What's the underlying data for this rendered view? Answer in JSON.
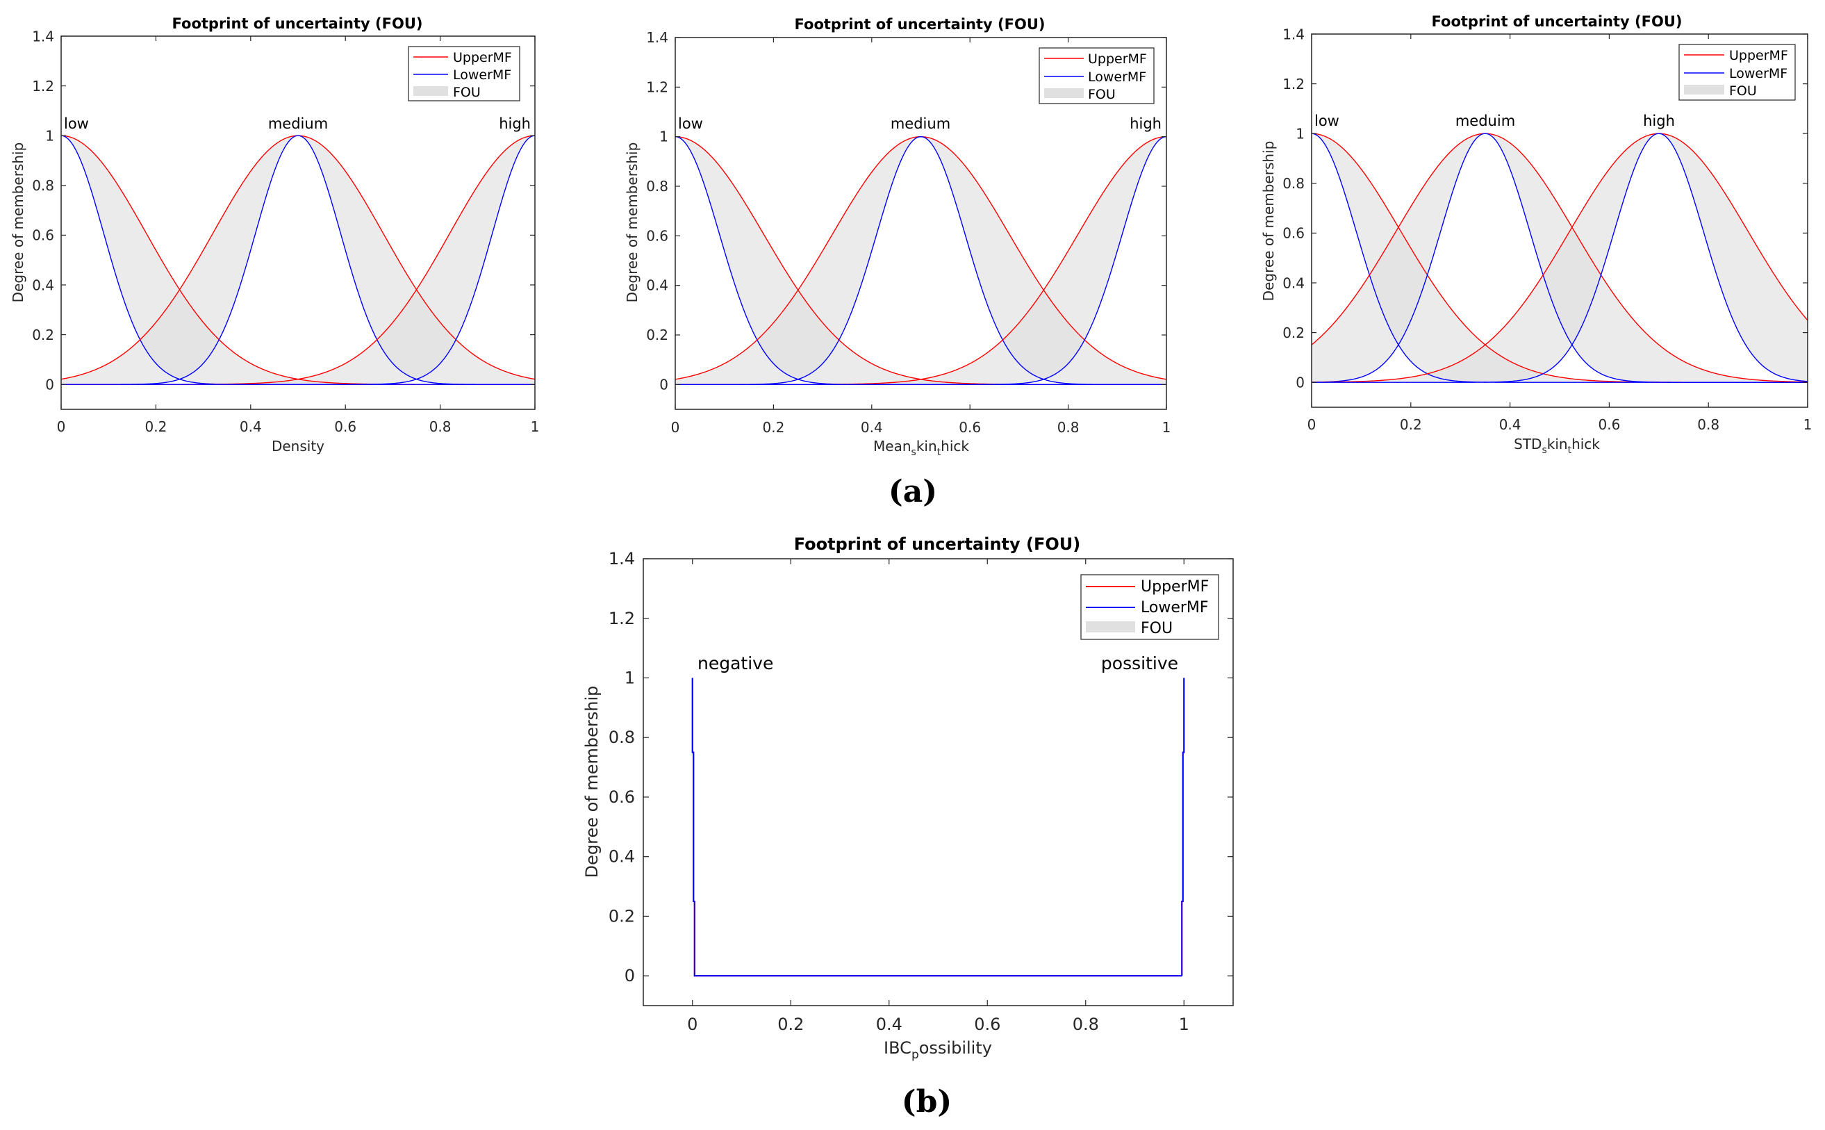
{
  "panel_labels": {
    "a": "(a)",
    "b": "(b)"
  },
  "colors": {
    "upper": "#ff0000",
    "lower": "#0000ff",
    "fou": "#e0e0e0",
    "axis": "#262626"
  },
  "chart_data": [
    {
      "id": "density",
      "type": "line",
      "title": "Footprint of uncertainty (FOU)",
      "xlabel": "Density",
      "ylabel": "Degree of membership",
      "xlim": [
        0,
        1
      ],
      "ylim": [
        -0.1,
        1.4
      ],
      "xticks": [
        "0",
        "0.2",
        "0.4",
        "0.6",
        "0.8",
        "1"
      ],
      "yticks": [
        "0",
        "0.2",
        "0.4",
        "0.6",
        "0.8",
        "1",
        "1.2",
        "1.4"
      ],
      "legend": [
        "UpperMF",
        "LowerMF",
        "FOU"
      ],
      "mfs": [
        {
          "name": "low",
          "center": 0,
          "upper_sigma": 0.18,
          "lower_sigma": 0.09
        },
        {
          "name": "medium",
          "center": 0.5,
          "upper_sigma": 0.18,
          "lower_sigma": 0.09
        },
        {
          "name": "high",
          "center": 1,
          "upper_sigma": 0.18,
          "lower_sigma": 0.09
        }
      ]
    },
    {
      "id": "mean-skin-thick",
      "type": "line",
      "title": "Footprint of uncertainty (FOU)",
      "xlabel_main": "Mean",
      "xlabel_sub1": "s",
      "xlabel_mid": "kin",
      "xlabel_sub2": "t",
      "xlabel_end": "hick",
      "ylabel": "Degree of membership",
      "xlim": [
        0,
        1
      ],
      "ylim": [
        -0.1,
        1.4
      ],
      "xticks": [
        "0",
        "0.2",
        "0.4",
        "0.6",
        "0.8",
        "1"
      ],
      "yticks": [
        "0",
        "0.2",
        "0.4",
        "0.6",
        "0.8",
        "1",
        "1.2",
        "1.4"
      ],
      "legend": [
        "UpperMF",
        "LowerMF",
        "FOU"
      ],
      "mfs": [
        {
          "name": "low",
          "center": 0,
          "upper_sigma": 0.18,
          "lower_sigma": 0.09
        },
        {
          "name": "medium",
          "center": 0.5,
          "upper_sigma": 0.18,
          "lower_sigma": 0.09
        },
        {
          "name": "high",
          "center": 1,
          "upper_sigma": 0.18,
          "lower_sigma": 0.09
        }
      ]
    },
    {
      "id": "std-skin-thick",
      "type": "line",
      "title": "Footprint of uncertainty (FOU)",
      "xlabel_main": "STD",
      "xlabel_sub1": "s",
      "xlabel_mid": "kin",
      "xlabel_sub2": "t",
      "xlabel_end": "hick",
      "ylabel": "Degree of membership",
      "xlim": [
        0,
        1
      ],
      "ylim": [
        -0.1,
        1.4
      ],
      "xticks": [
        "0",
        "0.2",
        "0.4",
        "0.6",
        "0.8",
        "1"
      ],
      "yticks": [
        "0",
        "0.2",
        "0.4",
        "0.6",
        "0.8",
        "1",
        "1.2",
        "1.4"
      ],
      "legend": [
        "UpperMF",
        "LowerMF",
        "FOU"
      ],
      "mfs": [
        {
          "name": "low",
          "center": 0,
          "upper_sigma": 0.18,
          "lower_sigma": 0.09
        },
        {
          "name": "meduim",
          "center": 0.35,
          "upper_sigma": 0.18,
          "lower_sigma": 0.09
        },
        {
          "name": "high",
          "center": 0.7,
          "upper_sigma": 0.18,
          "lower_sigma": 0.09
        }
      ]
    },
    {
      "id": "ibc-possibility",
      "type": "line",
      "title": "Footprint of uncertainty (FOU)",
      "xlabel_main": "IBC",
      "xlabel_sub1": "p",
      "xlabel_end": "ossibility",
      "ylabel": "Degree of membership",
      "xlim": [
        -0.1,
        1.1
      ],
      "ylim": [
        -0.1,
        1.4
      ],
      "xticks": [
        "0",
        "0.2",
        "0.4",
        "0.6",
        "0.8",
        "1"
      ],
      "yticks": [
        "0",
        "0.2",
        "0.4",
        "0.6",
        "0.8",
        "1",
        "1.2",
        "1.4"
      ],
      "legend": [
        "UpperMF",
        "LowerMF",
        "FOU"
      ],
      "mfs": [
        {
          "name": "negative",
          "center": 0,
          "upper_sigma": 0.001,
          "lower_sigma": 0.001
        },
        {
          "name": "possitive",
          "center": 1,
          "upper_sigma": 0.001,
          "lower_sigma": 0.001
        }
      ]
    }
  ]
}
